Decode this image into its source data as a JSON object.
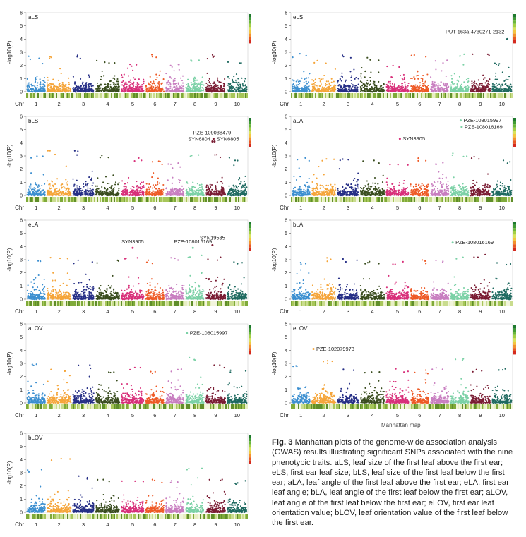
{
  "colors": {
    "chr": [
      "#3c8fd0",
      "#f5a53a",
      "#262f86",
      "#3a4d1f",
      "#d8307a",
      "#ee5a26",
      "#c87ec0",
      "#7bd1a6",
      "#7a1c33",
      "#1f6a60"
    ],
    "label": "#222222"
  },
  "figure": {
    "ylabel": "-log10(P)",
    "chr_label": "Chr",
    "xlabel": "Manhattan map",
    "caption_label": "Fig. 3",
    "caption_text": "Manhattan plots of the genome-wide association analysis (GWAS) results illustrating significant SNPs associated with the nine phenotypic traits.  aLS, leaf size of the first leaf above the first ear;  eLS, first ear leaf size; bLS, leaf size of the first leaf below the first ear; aLA, leaf angle of the first leaf above the first ear; eLA, first ear leaf angle; bLA, leaf angle of the first leaf below the first ear; aLOV, leaf angle of the first leaf below the first ear; eLOV, first ear leaf orientation value; bLOV, leaf orientation value of the first leaf below the first ear."
  },
  "chart_data": [
    {
      "type": "scatter",
      "title": "aLS",
      "ylabel": "-log10(P)",
      "ylim": [
        0,
        6
      ],
      "yticks": [
        0,
        1,
        2,
        3,
        4,
        5,
        6
      ],
      "categories": [
        "1",
        "2",
        "3",
        "4",
        "5",
        "6",
        "7",
        "8",
        "9",
        "10"
      ],
      "base_peak": [
        2.7,
        2.8,
        2.8,
        2.4,
        2.1,
        2.9,
        2.2,
        2.5,
        2.8,
        2.3
      ],
      "annotations": []
    },
    {
      "type": "scatter",
      "title": "eLS",
      "ylabel": "-log10(P)",
      "ylim": [
        0,
        6
      ],
      "yticks": [
        0,
        1,
        2,
        3,
        4,
        5,
        6
      ],
      "categories": [
        "1",
        "2",
        "3",
        "4",
        "5",
        "6",
        "7",
        "8",
        "9",
        "10"
      ],
      "base_peak": [
        2.9,
        2.4,
        2.8,
        2.6,
        2.0,
        2.9,
        2.4,
        2.9,
        2.9,
        2.2
      ],
      "annotations": [
        {
          "label": "PUT-163a-4730271-2132",
          "chr": "10",
          "pos": 0.75,
          "value": 4.0
        }
      ]
    },
    {
      "type": "scatter",
      "title": "bLS",
      "ylabel": "-log10(P)",
      "ylim": [
        0,
        6
      ],
      "yticks": [
        0,
        1,
        2,
        3,
        4,
        5,
        6
      ],
      "categories": [
        "1",
        "2",
        "3",
        "4",
        "5",
        "6",
        "7",
        "8",
        "9",
        "10"
      ],
      "base_peak": [
        3.0,
        3.4,
        3.4,
        3.2,
        2.9,
        2.8,
        2.5,
        3.3,
        3.2,
        2.9
      ],
      "annotations": [
        {
          "label": "PZE-109038479",
          "chr": "9",
          "pos": 0.4,
          "value": 4.3
        },
        {
          "label": "SYN6804",
          "chr": "9",
          "pos": 0.35,
          "value": 4.1
        },
        {
          "label": "SYN6805",
          "chr": "9",
          "pos": 0.45,
          "value": 4.1
        }
      ]
    },
    {
      "type": "scatter",
      "title": "aLA",
      "ylabel": "-log10(P)",
      "ylim": [
        0,
        6
      ],
      "yticks": [
        0,
        1,
        2,
        3,
        4,
        5,
        6
      ],
      "categories": [
        "1",
        "2",
        "3",
        "4",
        "5",
        "6",
        "7",
        "8",
        "9",
        "10"
      ],
      "base_peak": [
        2.9,
        2.8,
        2.8,
        2.7,
        2.5,
        2.9,
        2.6,
        3.2,
        3.0,
        2.7
      ],
      "annotations": [
        {
          "label": "PZE-108015997",
          "chr": "8",
          "pos": 0.55,
          "value": 5.7
        },
        {
          "label": "PZE-108016169",
          "chr": "8",
          "pos": 0.6,
          "value": 5.2
        },
        {
          "label": "SYN3905",
          "chr": "5",
          "pos": 0.6,
          "value": 4.3
        }
      ]
    },
    {
      "type": "scatter",
      "title": "eLA",
      "ylabel": "-log10(P)",
      "ylim": [
        0,
        6
      ],
      "yticks": [
        0,
        1,
        2,
        3,
        4,
        5,
        6
      ],
      "categories": [
        "1",
        "2",
        "3",
        "4",
        "5",
        "6",
        "7",
        "8",
        "9",
        "10"
      ],
      "base_peak": [
        3.0,
        3.2,
        3.0,
        3.0,
        3.2,
        3.0,
        3.2,
        3.4,
        3.2,
        2.9
      ],
      "annotations": [
        {
          "label": "SYN3905",
          "chr": "5",
          "pos": 0.5,
          "value": 3.9
        },
        {
          "label": "PZE-108016169",
          "chr": "8",
          "pos": 0.4,
          "value": 3.9
        },
        {
          "label": "SYN19535",
          "chr": "9",
          "pos": 0.35,
          "value": 4.1
        }
      ]
    },
    {
      "type": "scatter",
      "title": "bLA",
      "ylabel": "-log10(P)",
      "ylim": [
        0,
        6
      ],
      "yticks": [
        0,
        1,
        2,
        3,
        4,
        5,
        6
      ],
      "categories": [
        "1",
        "2",
        "3",
        "4",
        "5",
        "6",
        "7",
        "8",
        "9",
        "10"
      ],
      "base_peak": [
        2.9,
        3.2,
        3.1,
        3.0,
        2.9,
        3.0,
        3.1,
        3.3,
        3.5,
        2.9
      ],
      "annotations": [
        {
          "label": "PZE-108016169",
          "chr": "8",
          "pos": 0.15,
          "value": 4.3
        }
      ]
    },
    {
      "type": "scatter",
      "title": "aLOV",
      "ylabel": "-log10(P)",
      "ylim": [
        0,
        6
      ],
      "yticks": [
        0,
        1,
        2,
        3,
        4,
        5,
        6
      ],
      "categories": [
        "1",
        "2",
        "3",
        "4",
        "5",
        "6",
        "7",
        "8",
        "9",
        "10"
      ],
      "base_peak": [
        3.0,
        2.6,
        2.9,
        2.5,
        2.8,
        2.5,
        2.6,
        3.5,
        2.9,
        2.5
      ],
      "annotations": [
        {
          "label": "PZE-108015997",
          "chr": "8",
          "pos": 0.1,
          "value": 5.3
        }
      ]
    },
    {
      "type": "scatter",
      "title": "eLOV",
      "ylabel": "-log10(P)",
      "ylim": [
        0,
        6
      ],
      "yticks": [
        0,
        1,
        2,
        3,
        4,
        5,
        6
      ],
      "categories": [
        "1",
        "2",
        "3",
        "4",
        "5",
        "6",
        "7",
        "8",
        "9",
        "10"
      ],
      "base_peak": [
        3.0,
        3.3,
        2.6,
        2.5,
        2.6,
        2.5,
        2.7,
        3.6,
        2.6,
        2.6
      ],
      "annotations": [
        {
          "label": "PZE-102079973",
          "chr": "2",
          "pos": 0.1,
          "value": 4.1
        }
      ]
    },
    {
      "type": "scatter",
      "title": "bLOV",
      "ylabel": "-log10(P)",
      "ylim": [
        0,
        6
      ],
      "yticks": [
        0,
        1,
        2,
        3,
        4,
        5,
        6
      ],
      "categories": [
        "1",
        "2",
        "3",
        "4",
        "5",
        "6",
        "7",
        "8",
        "9",
        "10"
      ],
      "base_peak": [
        3.3,
        4.1,
        2.8,
        2.6,
        2.5,
        2.5,
        2.5,
        3.6,
        2.6,
        2.4
      ],
      "annotations": []
    }
  ]
}
